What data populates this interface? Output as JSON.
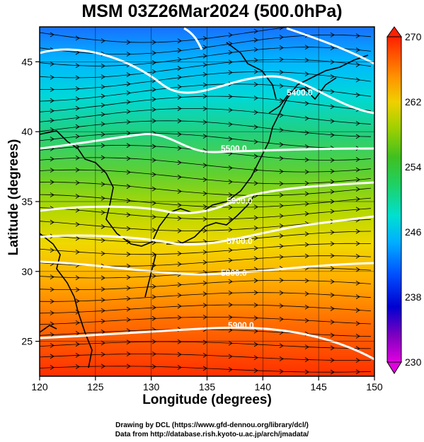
{
  "title": "MSM 03Z26Mar2024 (500.0hPa)",
  "map": {
    "xlabel": "Longitude (degrees)",
    "ylabel": "Latitude  (degrees)",
    "x_ticks": [
      "120",
      "125",
      "130",
      "135",
      "140",
      "145",
      "150"
    ],
    "y_ticks": [
      "25",
      "30",
      "35",
      "40",
      "45"
    ],
    "lon_range": [
      120,
      150
    ],
    "lat_range": [
      22.5,
      47.5
    ],
    "contours": [
      {
        "label": "5400.0"
      },
      {
        "label": "5500.0"
      },
      {
        "label": "5600.0"
      },
      {
        "label": "5700.0"
      },
      {
        "label": "5800.0"
      },
      {
        "label": "5900.0"
      }
    ],
    "colorbar": {
      "ticks": [
        "270",
        "262",
        "254",
        "246",
        "238",
        "230"
      ],
      "min": 230,
      "max": 270,
      "colors": [
        "#e000e0",
        "#6000c0",
        "#0000e0",
        "#0050ff",
        "#00b0ff",
        "#00e0d0",
        "#20d060",
        "#40c020",
        "#a0d000",
        "#f0d000",
        "#ff9000",
        "#ff4000",
        "#ff2000"
      ]
    }
  },
  "credits": {
    "line1": "Drawing by DCL (https://www.gfd-dennou.org/library/dcl/)",
    "line2": "Data from http://database.rish.kyoto-u.ac.jp/arch/jmadata/"
  }
}
